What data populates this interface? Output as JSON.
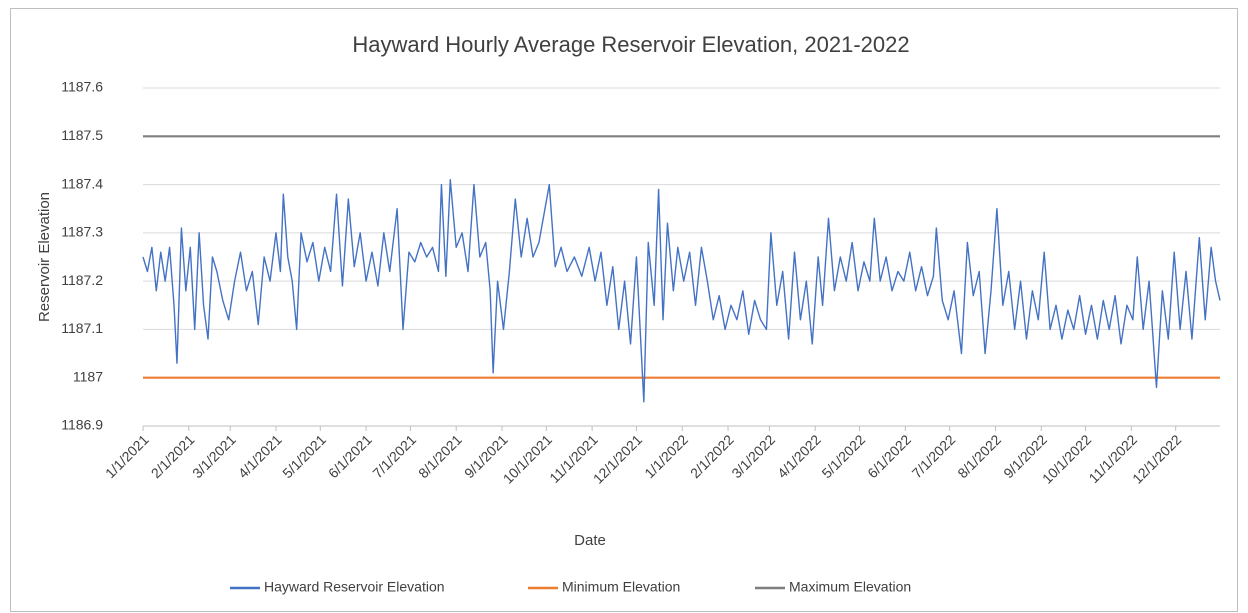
{
  "chart_data": {
    "type": "line",
    "title": "Hayward Hourly Average Reservoir Elevation, 2021-2022",
    "x_label": "Date",
    "y_label": "Reservoir Elevation",
    "ylim": [
      1186.9,
      1187.6
    ],
    "yticks": [
      1186.9,
      1187.0,
      1187.1,
      1187.2,
      1187.3,
      1187.4,
      1187.5,
      1187.6
    ],
    "xlim": [
      "1/1/2021",
      "12/31/2022"
    ],
    "xticks": [
      "1/1/2021",
      "2/1/2021",
      "3/1/2021",
      "4/1/2021",
      "5/1/2021",
      "6/1/2021",
      "7/1/2021",
      "8/1/2021",
      "9/1/2021",
      "10/1/2021",
      "11/1/2021",
      "12/1/2021",
      "1/1/2022",
      "2/1/2022",
      "3/1/2022",
      "4/1/2022",
      "5/1/2022",
      "6/1/2022",
      "7/1/2022",
      "8/1/2022",
      "9/1/2022",
      "10/1/2022",
      "11/1/2022",
      "12/1/2022"
    ],
    "grid": true,
    "legend": "bottom",
    "series": [
      {
        "name": "Hayward Reservoir Elevation",
        "color": "#4472c4",
        "x": [
          "1/1/2021",
          "1/4/2021",
          "1/7/2021",
          "1/10/2021",
          "1/13/2021",
          "1/16/2021",
          "1/19/2021",
          "1/22/2021",
          "1/24/2021",
          "1/27/2021",
          "1/30/2021",
          "2/2/2021",
          "2/5/2021",
          "2/8/2021",
          "2/11/2021",
          "2/14/2021",
          "2/17/2021",
          "2/20/2021",
          "2/24/2021",
          "2/28/2021",
          "3/4/2021",
          "3/8/2021",
          "3/12/2021",
          "3/16/2021",
          "3/20/2021",
          "3/24/2021",
          "3/28/2021",
          "4/1/2021",
          "4/4/2021",
          "4/6/2021",
          "4/9/2021",
          "4/12/2021",
          "4/15/2021",
          "4/18/2021",
          "4/22/2021",
          "4/26/2021",
          "4/30/2021",
          "5/4/2021",
          "5/8/2021",
          "5/12/2021",
          "5/16/2021",
          "5/20/2021",
          "5/24/2021",
          "5/28/2021",
          "6/1/2021",
          "6/5/2021",
          "6/9/2021",
          "6/13/2021",
          "6/17/2021",
          "6/22/2021",
          "6/26/2021",
          "6/30/2021",
          "7/4/2021",
          "7/8/2021",
          "7/12/2021",
          "7/16/2021",
          "7/20/2021",
          "7/22/2021",
          "7/25/2021",
          "7/28/2021",
          "8/1/2021",
          "8/5/2021",
          "8/9/2021",
          "8/13/2021",
          "8/17/2021",
          "8/21/2021",
          "8/24/2021",
          "8/26/2021",
          "8/29/2021",
          "9/2/2021",
          "9/6/2021",
          "9/10/2021",
          "9/14/2021",
          "9/18/2021",
          "9/22/2021",
          "9/26/2021",
          "10/3/2021",
          "10/7/2021",
          "10/11/2021",
          "10/15/2021",
          "10/20/2021",
          "10/25/2021",
          "10/30/2021",
          "11/3/2021",
          "11/7/2021",
          "11/11/2021",
          "11/15/2021",
          "11/19/2021",
          "11/23/2021",
          "11/27/2021",
          "12/1/2021",
          "12/6/2021",
          "12/9/2021",
          "12/13/2021",
          "12/16/2021",
          "12/19/2021",
          "12/22/2021",
          "12/26/2021",
          "12/29/2021",
          "1/2/2022",
          "1/6/2022",
          "1/10/2022",
          "1/14/2022",
          "1/18/2022",
          "1/22/2022",
          "1/26/2022",
          "1/30/2022",
          "2/3/2022",
          "2/7/2022",
          "2/11/2022",
          "2/15/2022",
          "2/19/2022",
          "2/23/2022",
          "2/27/2022",
          "3/2/2022",
          "3/6/2022",
          "3/10/2022",
          "3/14/2022",
          "3/18/2022",
          "3/22/2022",
          "3/26/2022",
          "3/30/2022",
          "4/3/2022",
          "4/6/2022",
          "4/10/2022",
          "4/14/2022",
          "4/18/2022",
          "4/22/2022",
          "4/26/2022",
          "4/30/2022",
          "5/4/2022",
          "5/8/2022",
          "5/11/2022",
          "5/15/2022",
          "5/19/2022",
          "5/23/2022",
          "5/27/2022",
          "5/31/2022",
          "6/4/2022",
          "6/8/2022",
          "6/12/2022",
          "6/16/2022",
          "6/20/2022",
          "6/22/2022",
          "6/26/2022",
          "6/30/2022",
          "7/4/2022",
          "7/9/2022",
          "7/13/2022",
          "7/17/2022",
          "7/21/2022",
          "7/25/2022",
          "7/29/2022",
          "8/2/2022",
          "8/6/2022",
          "8/10/2022",
          "8/14/2022",
          "8/18/2022",
          "8/22/2022",
          "8/26/2022",
          "8/30/2022",
          "9/3/2022",
          "9/7/2022",
          "9/11/2022",
          "9/15/2022",
          "9/19/2022",
          "9/23/2022",
          "9/27/2022",
          "10/1/2022",
          "10/5/2022",
          "10/9/2022",
          "10/13/2022",
          "10/17/2022",
          "10/21/2022",
          "10/25/2022",
          "10/29/2022",
          "11/2/2022",
          "11/5/2022",
          "11/9/2022",
          "11/13/2022",
          "11/18/2022",
          "11/22/2022",
          "11/26/2022",
          "11/30/2022",
          "12/4/2022",
          "12/8/2022",
          "12/12/2022",
          "12/17/2022",
          "12/21/2022",
          "12/25/2022",
          "12/28/2022",
          "12/31/2022"
        ],
        "values": [
          1187.25,
          1187.22,
          1187.27,
          1187.18,
          1187.26,
          1187.2,
          1187.27,
          1187.15,
          1187.03,
          1187.31,
          1187.18,
          1187.27,
          1187.1,
          1187.3,
          1187.15,
          1187.08,
          1187.25,
          1187.22,
          1187.16,
          1187.12,
          1187.2,
          1187.26,
          1187.18,
          1187.22,
          1187.11,
          1187.25,
          1187.2,
          1187.3,
          1187.22,
          1187.38,
          1187.25,
          1187.2,
          1187.1,
          1187.3,
          1187.24,
          1187.28,
          1187.2,
          1187.27,
          1187.22,
          1187.38,
          1187.19,
          1187.37,
          1187.23,
          1187.3,
          1187.2,
          1187.26,
          1187.19,
          1187.3,
          1187.22,
          1187.35,
          1187.1,
          1187.26,
          1187.24,
          1187.28,
          1187.25,
          1187.27,
          1187.22,
          1187.4,
          1187.21,
          1187.41,
          1187.27,
          1187.3,
          1187.22,
          1187.4,
          1187.25,
          1187.28,
          1187.18,
          1187.01,
          1187.2,
          1187.1,
          1187.22,
          1187.37,
          1187.25,
          1187.33,
          1187.25,
          1187.28,
          1187.4,
          1187.23,
          1187.27,
          1187.22,
          1187.25,
          1187.21,
          1187.27,
          1187.2,
          1187.26,
          1187.15,
          1187.23,
          1187.1,
          1187.2,
          1187.07,
          1187.25,
          1186.95,
          1187.28,
          1187.15,
          1187.39,
          1187.12,
          1187.32,
          1187.18,
          1187.27,
          1187.2,
          1187.26,
          1187.15,
          1187.27,
          1187.2,
          1187.12,
          1187.17,
          1187.1,
          1187.15,
          1187.12,
          1187.18,
          1187.09,
          1187.16,
          1187.12,
          1187.1,
          1187.3,
          1187.15,
          1187.22,
          1187.08,
          1187.26,
          1187.12,
          1187.2,
          1187.07,
          1187.25,
          1187.15,
          1187.33,
          1187.18,
          1187.25,
          1187.2,
          1187.28,
          1187.18,
          1187.24,
          1187.2,
          1187.33,
          1187.2,
          1187.25,
          1187.18,
          1187.22,
          1187.2,
          1187.26,
          1187.18,
          1187.23,
          1187.17,
          1187.21,
          1187.31,
          1187.16,
          1187.12,
          1187.18,
          1187.05,
          1187.28,
          1187.17,
          1187.22,
          1187.05,
          1187.18,
          1187.35,
          1187.15,
          1187.22,
          1187.1,
          1187.2,
          1187.08,
          1187.18,
          1187.12,
          1187.26,
          1187.1,
          1187.15,
          1187.08,
          1187.14,
          1187.1,
          1187.17,
          1187.09,
          1187.15,
          1187.08,
          1187.16,
          1187.1,
          1187.17,
          1187.07,
          1187.15,
          1187.12,
          1187.25,
          1187.1,
          1187.2,
          1186.98,
          1187.18,
          1187.08,
          1187.26,
          1187.1,
          1187.22,
          1187.08,
          1187.29,
          1187.12,
          1187.27,
          1187.2,
          1187.16
        ]
      },
      {
        "name": "Minimum Elevation",
        "color": "#ed7d31",
        "x": [
          "1/1/2021",
          "12/31/2022"
        ],
        "values": [
          1187.0,
          1187.0
        ]
      },
      {
        "name": "Maximum Elevation",
        "color": "#7f7f7f",
        "x": [
          "1/1/2021",
          "12/31/2022"
        ],
        "values": [
          1187.5,
          1187.5
        ]
      }
    ]
  }
}
